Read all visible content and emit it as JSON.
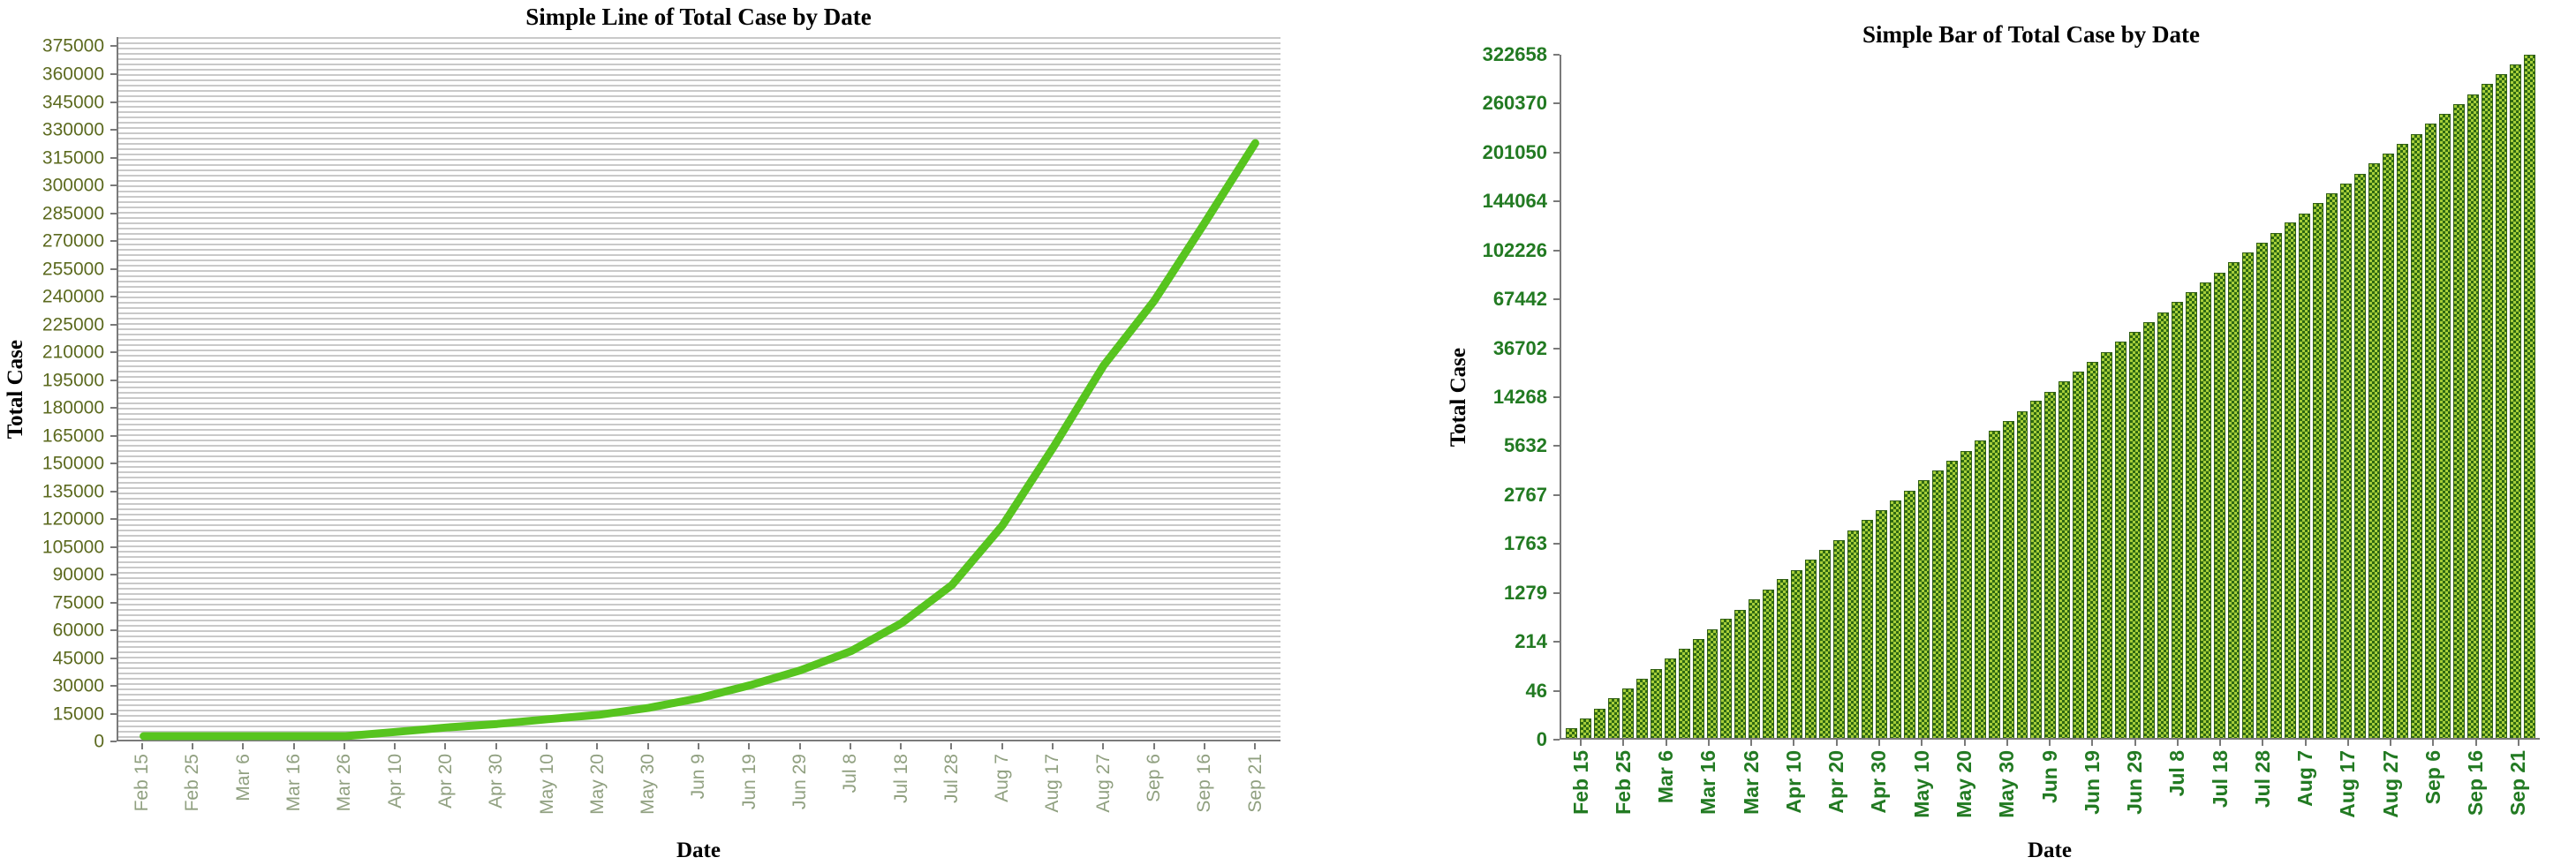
{
  "page": {
    "background": "#ffffff"
  },
  "chart_data": [
    {
      "id": "line",
      "type": "line",
      "title": "Simple Line of Total Case by Date",
      "xlabel": "Date",
      "ylabel": "Total Case",
      "legend": "none",
      "grid": "horizontal-stripes",
      "line_color": "#57c41f",
      "axis_color": "#7a7a7a",
      "ylim": [
        0,
        380000
      ],
      "yticks": [
        0,
        15000,
        30000,
        45000,
        60000,
        75000,
        90000,
        105000,
        120000,
        135000,
        150000,
        165000,
        180000,
        195000,
        210000,
        225000,
        240000,
        255000,
        270000,
        285000,
        300000,
        315000,
        330000,
        345000,
        360000,
        375000
      ],
      "categories": [
        "Feb 15",
        "Feb 25",
        "Mar 6",
        "Mar 16",
        "Mar 26",
        "Apr 10",
        "Apr 20",
        "Apr 30",
        "May 10",
        "May 20",
        "May 30",
        "Jun 9",
        "Jun 19",
        "Jun 29",
        "Jul 8",
        "Jul 18",
        "Jul 28",
        "Aug 7",
        "Aug 17",
        "Aug 27",
        "Sep 6",
        "Sep 16",
        "Sep 21"
      ],
      "values": [
        3,
        5,
        12,
        142,
        803,
        4195,
        6599,
        8488,
        11086,
        13434,
        17224,
        22474,
        29400,
        37514,
        47873,
        63001,
        83673,
        115980,
        157918,
        202361,
        237365,
        279526,
        322658
      ]
    },
    {
      "id": "bar",
      "type": "bar",
      "title": "Simple Bar of Total Case by Date",
      "xlabel": "Date",
      "ylabel": "Total Case",
      "legend": "none",
      "grid": "off",
      "bar_fill_color": "#a6ce39",
      "bar_pattern_color": "#2f6a12",
      "axis_color": "#7a7a7a",
      "ytick_labels": [
        "0",
        "46",
        "214",
        "1279",
        "1763",
        "2767",
        "5632",
        "14268",
        "36702",
        "67442",
        "102226",
        "144064",
        "201050",
        "260370",
        "322658"
      ],
      "categories": [
        "Feb 15",
        "Feb 25",
        "Mar 6",
        "Mar 16",
        "Mar 26",
        "Apr 10",
        "Apr 20",
        "Apr 30",
        "May 10",
        "May 20",
        "May 30",
        "Jun 9",
        "Jun 19",
        "Jun 29",
        "Jul 8",
        "Jul 18",
        "Jul 28",
        "Aug 7",
        "Aug 17",
        "Aug 27",
        "Sep 6",
        "Sep 16",
        "Sep 21"
      ],
      "num_bars": 69,
      "bar_heights_pct": [
        1.4,
        2.9,
        4.3,
        5.8,
        7.2,
        8.7,
        10.1,
        11.6,
        13.0,
        14.5,
        15.9,
        17.4,
        18.8,
        20.3,
        21.7,
        23.2,
        24.6,
        26.1,
        27.5,
        29.0,
        30.4,
        31.9,
        33.3,
        34.8,
        36.2,
        37.7,
        39.1,
        40.6,
        42.0,
        43.5,
        44.9,
        46.4,
        47.8,
        49.3,
        50.7,
        52.2,
        53.6,
        55.1,
        56.5,
        58.0,
        59.4,
        60.9,
        62.3,
        63.8,
        65.2,
        66.7,
        68.1,
        69.6,
        71.0,
        72.5,
        73.9,
        75.4,
        76.8,
        78.3,
        79.7,
        81.2,
        82.6,
        84.1,
        85.5,
        87.0,
        88.4,
        89.9,
        91.3,
        92.8,
        94.2,
        95.7,
        97.1,
        98.6,
        100.0
      ]
    }
  ]
}
